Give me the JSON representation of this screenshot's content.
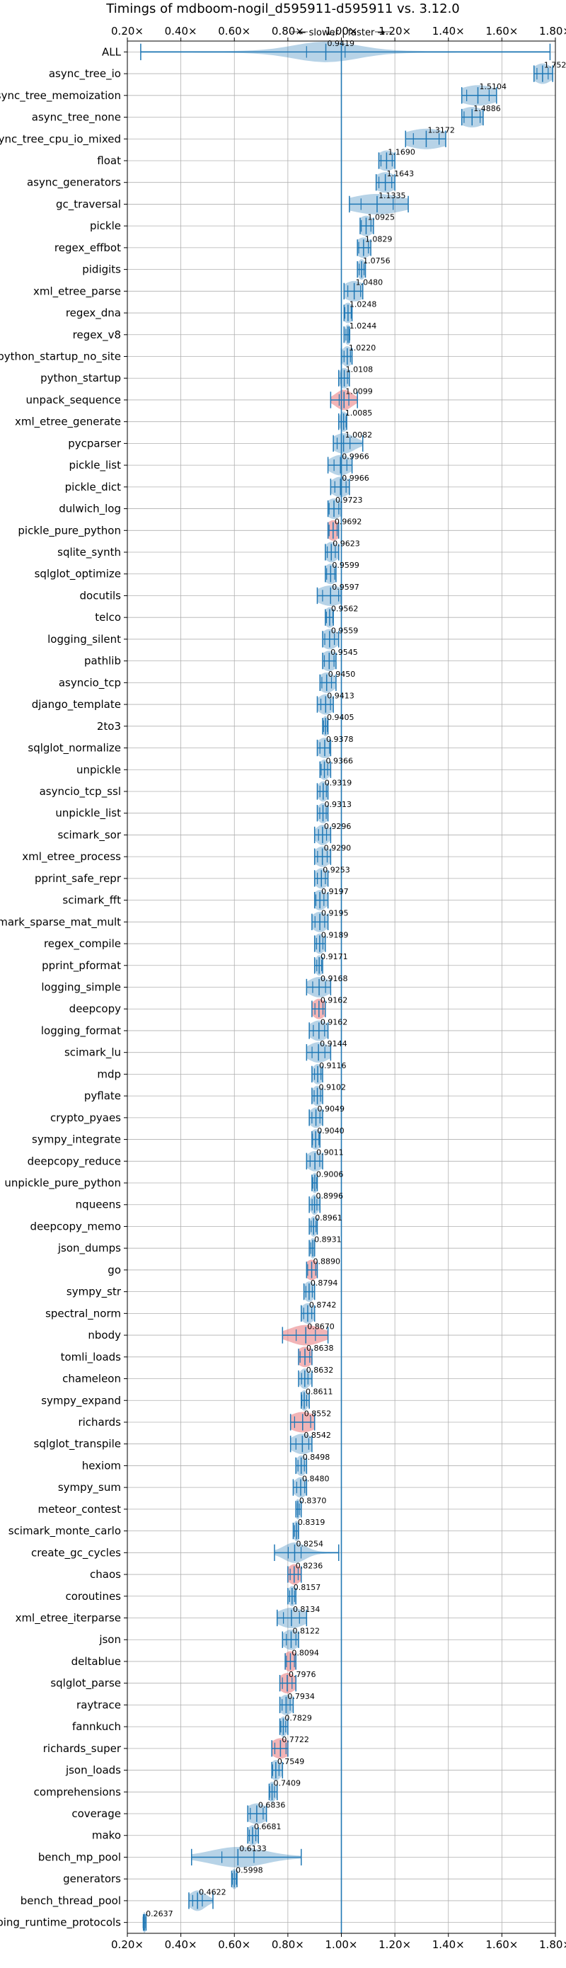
{
  "chart_data": {
    "type": "violin",
    "title": "Timings of mdboom-nogil_d595911-d595911 vs. 3.12.0",
    "annotation": "← slower | faster →",
    "xlim": [
      0.2,
      1.8
    ],
    "xticks": [
      0.2,
      0.4,
      0.6,
      0.8,
      1.0,
      1.2,
      1.4,
      1.6,
      1.8
    ],
    "xtick_labels": [
      "0.20×",
      "0.40×",
      "0.60×",
      "0.80×",
      "1.00×",
      "1.20×",
      "1.40×",
      "1.60×",
      "1.80×"
    ],
    "grid": true,
    "reference_line": 1.0,
    "colors": {
      "violin": "#1f77b4",
      "violin_highlight": "#e8767a",
      "lines": "#1f77b4",
      "grid": "#b0b0b0"
    },
    "benchmarks": [
      {
        "name": "ALL",
        "value": 0.9419,
        "label": "0.9419",
        "min": 0.25,
        "max": 1.78,
        "spread": 0.12,
        "highlight": false
      },
      {
        "name": "async_tree_io",
        "value": 1.752,
        "label": "1.7520",
        "min": 1.72,
        "max": 1.79,
        "spread": 0.035,
        "highlight": false
      },
      {
        "name": "async_tree_memoization",
        "value": 1.5104,
        "label": "1.5104",
        "min": 1.45,
        "max": 1.58,
        "spread": 0.07,
        "highlight": false
      },
      {
        "name": "async_tree_none",
        "value": 1.4886,
        "label": "1.4886",
        "min": 1.45,
        "max": 1.53,
        "spread": 0.05,
        "highlight": false
      },
      {
        "name": "async_tree_cpu_io_mixed",
        "value": 1.3172,
        "label": "1.3172",
        "min": 1.24,
        "max": 1.39,
        "spread": 0.08,
        "highlight": false
      },
      {
        "name": "float",
        "value": 1.169,
        "label": "1.1690",
        "min": 1.14,
        "max": 1.2,
        "spread": 0.035,
        "highlight": false
      },
      {
        "name": "async_generators",
        "value": 1.1643,
        "label": "1.1643",
        "min": 1.13,
        "max": 1.2,
        "spread": 0.04,
        "highlight": false
      },
      {
        "name": "gc_traversal",
        "value": 1.1335,
        "label": "1.1335",
        "min": 1.03,
        "max": 1.25,
        "spread": 0.1,
        "highlight": false
      },
      {
        "name": "pickle",
        "value": 1.0925,
        "label": "1.0925",
        "min": 1.07,
        "max": 1.12,
        "spread": 0.03,
        "highlight": false
      },
      {
        "name": "regex_effbot",
        "value": 1.0829,
        "label": "1.0829",
        "min": 1.06,
        "max": 1.11,
        "spread": 0.03,
        "highlight": false
      },
      {
        "name": "pidigits",
        "value": 1.0756,
        "label": "1.0756",
        "min": 1.06,
        "max": 1.09,
        "spread": 0.015,
        "highlight": false
      },
      {
        "name": "xml_etree_parse",
        "value": 1.048,
        "label": "1.0480",
        "min": 1.01,
        "max": 1.08,
        "spread": 0.04,
        "highlight": false
      },
      {
        "name": "regex_dna",
        "value": 1.0248,
        "label": "1.0248",
        "min": 1.01,
        "max": 1.04,
        "spread": 0.02,
        "highlight": false
      },
      {
        "name": "regex_v8",
        "value": 1.0244,
        "label": "1.0244",
        "min": 1.01,
        "max": 1.03,
        "spread": 0.012,
        "highlight": false
      },
      {
        "name": "python_startup_no_site",
        "value": 1.022,
        "label": "1.0220",
        "min": 1.0,
        "max": 1.04,
        "spread": 0.02,
        "highlight": false
      },
      {
        "name": "python_startup",
        "value": 1.0108,
        "label": "1.0108",
        "min": 0.99,
        "max": 1.03,
        "spread": 0.02,
        "highlight": false
      },
      {
        "name": "unpack_sequence",
        "value": 1.0099,
        "label": "1.0099",
        "min": 0.96,
        "max": 1.06,
        "spread": 0.03,
        "highlight": true
      },
      {
        "name": "xml_etree_generate",
        "value": 1.0085,
        "label": "1.0085",
        "min": 0.99,
        "max": 1.02,
        "spread": 0.015,
        "highlight": false
      },
      {
        "name": "pycparser",
        "value": 1.0082,
        "label": "1.0082",
        "min": 0.97,
        "max": 1.08,
        "spread": 0.04,
        "highlight": false
      },
      {
        "name": "pickle_list",
        "value": 0.9966,
        "label": "0.9966",
        "min": 0.95,
        "max": 1.04,
        "spread": 0.04,
        "highlight": false
      },
      {
        "name": "pickle_dict",
        "value": 0.9966,
        "label": "0.9966",
        "min": 0.96,
        "max": 1.03,
        "spread": 0.035,
        "highlight": false
      },
      {
        "name": "dulwich_log",
        "value": 0.9723,
        "label": "0.9723",
        "min": 0.95,
        "max": 1.0,
        "spread": 0.03,
        "highlight": false
      },
      {
        "name": "pickle_pure_python",
        "value": 0.9692,
        "label": "0.9692",
        "min": 0.95,
        "max": 0.99,
        "spread": 0.025,
        "highlight": true
      },
      {
        "name": "sqlite_synth",
        "value": 0.9623,
        "label": "0.9623",
        "min": 0.94,
        "max": 0.99,
        "spread": 0.025,
        "highlight": false
      },
      {
        "name": "sqlglot_optimize",
        "value": 0.9599,
        "label": "0.9599",
        "min": 0.94,
        "max": 0.98,
        "spread": 0.025,
        "highlight": false
      },
      {
        "name": "docutils",
        "value": 0.9597,
        "label": "0.9597",
        "min": 0.91,
        "max": 1.0,
        "spread": 0.05,
        "highlight": false
      },
      {
        "name": "telco",
        "value": 0.9562,
        "label": "0.9562",
        "min": 0.94,
        "max": 0.97,
        "spread": 0.02,
        "highlight": false
      },
      {
        "name": "logging_silent",
        "value": 0.9559,
        "label": "0.9559",
        "min": 0.93,
        "max": 0.99,
        "spread": 0.03,
        "highlight": false
      },
      {
        "name": "pathlib",
        "value": 0.9545,
        "label": "0.9545",
        "min": 0.93,
        "max": 0.98,
        "spread": 0.03,
        "highlight": false
      },
      {
        "name": "asyncio_tcp",
        "value": 0.945,
        "label": "0.9450",
        "min": 0.92,
        "max": 0.98,
        "spread": 0.03,
        "highlight": false
      },
      {
        "name": "django_template",
        "value": 0.9413,
        "label": "0.9413",
        "min": 0.91,
        "max": 0.97,
        "spread": 0.03,
        "highlight": false
      },
      {
        "name": "2to3",
        "value": 0.9405,
        "label": "0.9405",
        "min": 0.93,
        "max": 0.95,
        "spread": 0.012,
        "highlight": false
      },
      {
        "name": "sqlglot_normalize",
        "value": 0.9378,
        "label": "0.9378",
        "min": 0.91,
        "max": 0.96,
        "spread": 0.03,
        "highlight": false
      },
      {
        "name": "unpickle",
        "value": 0.9366,
        "label": "0.9366",
        "min": 0.92,
        "max": 0.96,
        "spread": 0.02,
        "highlight": false
      },
      {
        "name": "asyncio_tcp_ssl",
        "value": 0.9319,
        "label": "0.9319",
        "min": 0.91,
        "max": 0.95,
        "spread": 0.02,
        "highlight": false
      },
      {
        "name": "unpickle_list",
        "value": 0.9313,
        "label": "0.9313",
        "min": 0.91,
        "max": 0.95,
        "spread": 0.02,
        "highlight": false
      },
      {
        "name": "scimark_sor",
        "value": 0.9296,
        "label": "0.9296",
        "min": 0.9,
        "max": 0.96,
        "spread": 0.025,
        "highlight": false
      },
      {
        "name": "xml_etree_process",
        "value": 0.929,
        "label": "0.9290",
        "min": 0.9,
        "max": 0.96,
        "spread": 0.03,
        "highlight": false
      },
      {
        "name": "pprint_safe_repr",
        "value": 0.9253,
        "label": "0.9253",
        "min": 0.9,
        "max": 0.95,
        "spread": 0.025,
        "highlight": false
      },
      {
        "name": "scimark_fft",
        "value": 0.9197,
        "label": "0.9197",
        "min": 0.9,
        "max": 0.95,
        "spread": 0.025,
        "highlight": false
      },
      {
        "name": "scimark_sparse_mat_mult",
        "value": 0.9195,
        "label": "0.9195",
        "min": 0.89,
        "max": 0.95,
        "spread": 0.03,
        "highlight": false
      },
      {
        "name": "regex_compile",
        "value": 0.9189,
        "label": "0.9189",
        "min": 0.9,
        "max": 0.94,
        "spread": 0.02,
        "highlight": false
      },
      {
        "name": "pprint_pformat",
        "value": 0.9171,
        "label": "0.9171",
        "min": 0.9,
        "max": 0.93,
        "spread": 0.015,
        "highlight": false
      },
      {
        "name": "logging_simple",
        "value": 0.9168,
        "label": "0.9168",
        "min": 0.87,
        "max": 0.96,
        "spread": 0.04,
        "highlight": false
      },
      {
        "name": "deepcopy",
        "value": 0.9162,
        "label": "0.9162",
        "min": 0.89,
        "max": 0.94,
        "spread": 0.025,
        "highlight": true
      },
      {
        "name": "logging_format",
        "value": 0.9162,
        "label": "0.9162",
        "min": 0.88,
        "max": 0.95,
        "spread": 0.035,
        "highlight": false
      },
      {
        "name": "scimark_lu",
        "value": 0.9144,
        "label": "0.9144",
        "min": 0.87,
        "max": 0.96,
        "spread": 0.04,
        "highlight": false
      },
      {
        "name": "mdp",
        "value": 0.9116,
        "label": "0.9116",
        "min": 0.89,
        "max": 0.93,
        "spread": 0.02,
        "highlight": false
      },
      {
        "name": "pyflate",
        "value": 0.9102,
        "label": "0.9102",
        "min": 0.89,
        "max": 0.93,
        "spread": 0.02,
        "highlight": false
      },
      {
        "name": "crypto_pyaes",
        "value": 0.9049,
        "label": "0.9049",
        "min": 0.88,
        "max": 0.93,
        "spread": 0.025,
        "highlight": false
      },
      {
        "name": "sympy_integrate",
        "value": 0.904,
        "label": "0.9040",
        "min": 0.89,
        "max": 0.92,
        "spread": 0.02,
        "highlight": false
      },
      {
        "name": "deepcopy_reduce",
        "value": 0.9011,
        "label": "0.9011",
        "min": 0.87,
        "max": 0.93,
        "spread": 0.03,
        "highlight": false
      },
      {
        "name": "unpickle_pure_python",
        "value": 0.9006,
        "label": "0.9006",
        "min": 0.89,
        "max": 0.91,
        "spread": 0.012,
        "highlight": false
      },
      {
        "name": "nqueens",
        "value": 0.8996,
        "label": "0.8996",
        "min": 0.88,
        "max": 0.92,
        "spread": 0.015,
        "highlight": false
      },
      {
        "name": "deepcopy_memo",
        "value": 0.8961,
        "label": "0.8961",
        "min": 0.88,
        "max": 0.91,
        "spread": 0.015,
        "highlight": false
      },
      {
        "name": "json_dumps",
        "value": 0.8931,
        "label": "0.8931",
        "min": 0.88,
        "max": 0.9,
        "spread": 0.012,
        "highlight": false
      },
      {
        "name": "go",
        "value": 0.889,
        "label": "0.8890",
        "min": 0.87,
        "max": 0.91,
        "spread": 0.025,
        "highlight": true
      },
      {
        "name": "sympy_str",
        "value": 0.8794,
        "label": "0.8794",
        "min": 0.86,
        "max": 0.9,
        "spread": 0.02,
        "highlight": false
      },
      {
        "name": "spectral_norm",
        "value": 0.8742,
        "label": "0.8742",
        "min": 0.85,
        "max": 0.9,
        "spread": 0.025,
        "highlight": false
      },
      {
        "name": "nbody",
        "value": 0.867,
        "label": "0.8670",
        "min": 0.78,
        "max": 0.95,
        "spread": 0.06,
        "highlight": true
      },
      {
        "name": "tomli_loads",
        "value": 0.8638,
        "label": "0.8638",
        "min": 0.84,
        "max": 0.89,
        "spread": 0.03,
        "highlight": true
      },
      {
        "name": "chameleon",
        "value": 0.8632,
        "label": "0.8632",
        "min": 0.84,
        "max": 0.89,
        "spread": 0.02,
        "highlight": false
      },
      {
        "name": "sympy_expand",
        "value": 0.8611,
        "label": "0.8611",
        "min": 0.85,
        "max": 0.88,
        "spread": 0.015,
        "highlight": false
      },
      {
        "name": "richards",
        "value": 0.8552,
        "label": "0.8552",
        "min": 0.81,
        "max": 0.9,
        "spread": 0.05,
        "highlight": true
      },
      {
        "name": "sqlglot_transpile",
        "value": 0.8542,
        "label": "0.8542",
        "min": 0.81,
        "max": 0.89,
        "spread": 0.04,
        "highlight": false
      },
      {
        "name": "hexiom",
        "value": 0.8498,
        "label": "0.8498",
        "min": 0.83,
        "max": 0.87,
        "spread": 0.02,
        "highlight": false
      },
      {
        "name": "sympy_sum",
        "value": 0.848,
        "label": "0.8480",
        "min": 0.82,
        "max": 0.87,
        "spread": 0.025,
        "highlight": false
      },
      {
        "name": "meteor_contest",
        "value": 0.837,
        "label": "0.8370",
        "min": 0.83,
        "max": 0.85,
        "spread": 0.01,
        "highlight": false
      },
      {
        "name": "scimark_monte_carlo",
        "value": 0.8319,
        "label": "0.8319",
        "min": 0.82,
        "max": 0.84,
        "spread": 0.012,
        "highlight": false
      },
      {
        "name": "create_gc_cycles",
        "value": 0.8254,
        "label": "0.8254",
        "min": 0.75,
        "max": 0.99,
        "spread": 0.04,
        "highlight": false
      },
      {
        "name": "chaos",
        "value": 0.8236,
        "label": "0.8236",
        "min": 0.8,
        "max": 0.85,
        "spread": 0.025,
        "highlight": true
      },
      {
        "name": "coroutines",
        "value": 0.8157,
        "label": "0.8157",
        "min": 0.8,
        "max": 0.83,
        "spread": 0.015,
        "highlight": false
      },
      {
        "name": "xml_etree_iterparse",
        "value": 0.8134,
        "label": "0.8134",
        "min": 0.76,
        "max": 0.87,
        "spread": 0.05,
        "highlight": false
      },
      {
        "name": "json",
        "value": 0.8122,
        "label": "0.8122",
        "min": 0.78,
        "max": 0.84,
        "spread": 0.03,
        "highlight": false
      },
      {
        "name": "deltablue",
        "value": 0.8094,
        "label": "0.8094",
        "min": 0.79,
        "max": 0.83,
        "spread": 0.025,
        "highlight": true
      },
      {
        "name": "sqlglot_parse",
        "value": 0.7976,
        "label": "0.7976",
        "min": 0.77,
        "max": 0.83,
        "spread": 0.03,
        "highlight": true
      },
      {
        "name": "raytrace",
        "value": 0.7934,
        "label": "0.7934",
        "min": 0.77,
        "max": 0.82,
        "spread": 0.025,
        "highlight": false
      },
      {
        "name": "fannkuch",
        "value": 0.7829,
        "label": "0.7829",
        "min": 0.77,
        "max": 0.8,
        "spread": 0.015,
        "highlight": false
      },
      {
        "name": "richards_super",
        "value": 0.7722,
        "label": "0.7722",
        "min": 0.74,
        "max": 0.8,
        "spread": 0.035,
        "highlight": true
      },
      {
        "name": "json_loads",
        "value": 0.7549,
        "label": "0.7549",
        "min": 0.74,
        "max": 0.78,
        "spread": 0.02,
        "highlight": false
      },
      {
        "name": "comprehensions",
        "value": 0.7409,
        "label": "0.7409",
        "min": 0.73,
        "max": 0.76,
        "spread": 0.015,
        "highlight": false
      },
      {
        "name": "coverage",
        "value": 0.6836,
        "label": "0.6836",
        "min": 0.65,
        "max": 0.72,
        "spread": 0.04,
        "highlight": false
      },
      {
        "name": "mako",
        "value": 0.6681,
        "label": "0.6681",
        "min": 0.65,
        "max": 0.69,
        "spread": 0.02,
        "highlight": false
      },
      {
        "name": "bench_mp_pool",
        "value": 0.6133,
        "label": "0.6133",
        "min": 0.44,
        "max": 0.85,
        "spread": 0.1,
        "highlight": false
      },
      {
        "name": "generators",
        "value": 0.5998,
        "label": "0.5998",
        "min": 0.59,
        "max": 0.61,
        "spread": 0.012,
        "highlight": false
      },
      {
        "name": "bench_thread_pool",
        "value": 0.4622,
        "label": "0.4622",
        "min": 0.43,
        "max": 0.52,
        "spread": 0.03,
        "highlight": false
      },
      {
        "name": "typing_runtime_protocols",
        "value": 0.2637,
        "label": "0.2637",
        "min": 0.26,
        "max": 0.27,
        "spread": 0.008,
        "highlight": false
      }
    ]
  }
}
